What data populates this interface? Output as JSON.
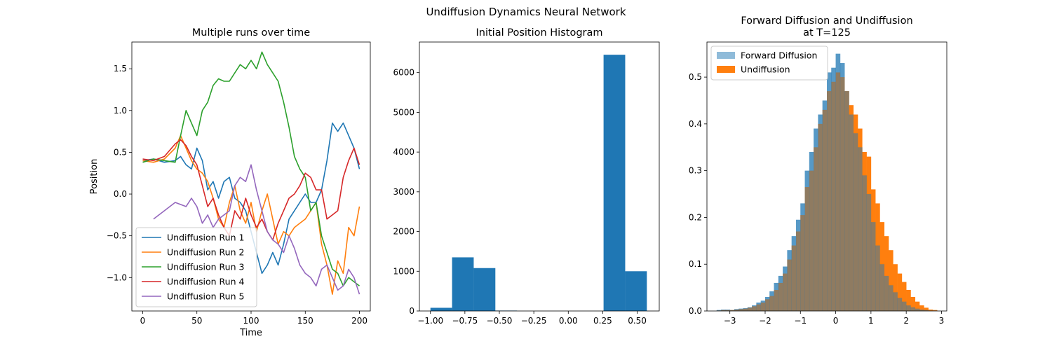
{
  "figure": {
    "suptitle": "Undiffusion Dynamics Neural Network"
  },
  "chart_data": [
    {
      "type": "line",
      "title": "Multiple runs over time",
      "xlabel": "Time",
      "ylabel": "Position",
      "xlim": [
        -10,
        210
      ],
      "ylim": [
        -1.4,
        1.82
      ],
      "xticks": [
        0,
        50,
        100,
        150,
        200
      ],
      "yticks": [
        -1.0,
        -0.5,
        0.0,
        0.5,
        1.0,
        1.5
      ],
      "xtick_labels": [
        "0",
        "50",
        "100",
        "150",
        "200"
      ],
      "ytick_labels": [
        "−1.0",
        "−0.5",
        "0.0",
        "0.5",
        "1.0",
        "1.5"
      ],
      "legend_position": "lower-left",
      "series": [
        {
          "name": "Undiffusion Run 1",
          "color": "#1f77b4",
          "x": [
            0,
            10,
            20,
            30,
            35,
            40,
            45,
            50,
            55,
            60,
            65,
            70,
            75,
            80,
            85,
            90,
            95,
            100,
            105,
            110,
            115,
            120,
            125,
            130,
            135,
            140,
            145,
            150,
            155,
            160,
            165,
            170,
            175,
            180,
            185,
            190,
            195,
            200
          ],
          "y": [
            0.4,
            0.42,
            0.38,
            0.4,
            0.45,
            0.35,
            0.3,
            0.55,
            0.4,
            0.05,
            0.15,
            -0.05,
            0.15,
            0.2,
            -0.05,
            -0.1,
            -0.2,
            -0.45,
            -0.7,
            -0.95,
            -0.85,
            -0.7,
            -0.85,
            -0.6,
            -0.3,
            -0.2,
            -0.1,
            0.0,
            -0.1,
            -0.1,
            0.05,
            0.4,
            0.85,
            0.75,
            0.85,
            0.7,
            0.55,
            0.3
          ]
        },
        {
          "name": "Undiffusion Run 2",
          "color": "#ff7f0e",
          "x": [
            0,
            10,
            20,
            30,
            35,
            40,
            45,
            50,
            55,
            60,
            65,
            70,
            75,
            80,
            85,
            90,
            95,
            100,
            105,
            110,
            115,
            120,
            125,
            130,
            135,
            140,
            145,
            150,
            155,
            160,
            165,
            170,
            175,
            180,
            185,
            190,
            195,
            200
          ],
          "y": [
            0.4,
            0.38,
            0.42,
            0.55,
            0.7,
            0.55,
            0.4,
            0.3,
            0.25,
            0.15,
            -0.05,
            -0.3,
            -0.4,
            -0.1,
            0.1,
            -0.2,
            -0.35,
            -0.1,
            -0.45,
            -0.2,
            0.0,
            -0.3,
            -0.6,
            -0.45,
            -0.5,
            -0.4,
            -0.35,
            -0.3,
            -0.2,
            -0.1,
            -0.6,
            -0.85,
            -1.2,
            -0.8,
            -0.95,
            -0.4,
            -0.5,
            -0.15
          ]
        },
        {
          "name": "Undiffusion Run 3",
          "color": "#2ca02c",
          "x": [
            0,
            10,
            20,
            30,
            35,
            40,
            45,
            50,
            55,
            60,
            65,
            70,
            75,
            80,
            85,
            90,
            95,
            100,
            105,
            110,
            115,
            120,
            125,
            130,
            135,
            140,
            145,
            150,
            155,
            160,
            165,
            170,
            175,
            180,
            185,
            190,
            195,
            200
          ],
          "y": [
            0.38,
            0.42,
            0.4,
            0.38,
            0.7,
            1.0,
            0.85,
            0.7,
            1.0,
            1.1,
            1.3,
            1.38,
            1.35,
            1.35,
            1.45,
            1.55,
            1.5,
            1.6,
            1.5,
            1.7,
            1.55,
            1.45,
            1.35,
            1.1,
            0.8,
            0.45,
            0.3,
            0.2,
            -0.2,
            -0.1,
            -0.5,
            -0.7,
            -0.9,
            -0.95,
            -1.1,
            -1.0,
            -1.05,
            -1.1
          ]
        },
        {
          "name": "Undiffusion Run 4",
          "color": "#d62728",
          "x": [
            0,
            10,
            20,
            30,
            35,
            40,
            45,
            50,
            55,
            60,
            65,
            70,
            75,
            80,
            85,
            90,
            95,
            100,
            105,
            110,
            115,
            120,
            125,
            130,
            135,
            140,
            145,
            150,
            155,
            160,
            165,
            170,
            175,
            180,
            185,
            190,
            195,
            200
          ],
          "y": [
            0.42,
            0.4,
            0.45,
            0.6,
            0.65,
            0.58,
            0.45,
            0.35,
            0.1,
            -0.15,
            -0.05,
            -0.25,
            -0.4,
            -0.5,
            -0.2,
            -0.3,
            -0.05,
            -0.25,
            -0.4,
            -0.3,
            -0.45,
            -0.55,
            -0.35,
            -0.2,
            -0.05,
            0.0,
            0.1,
            0.25,
            0.2,
            0.05,
            0.05,
            -0.3,
            -0.25,
            -0.2,
            0.2,
            0.4,
            0.55,
            0.35
          ]
        },
        {
          "name": "Undiffusion Run 5",
          "color": "#9467bd",
          "x": [
            10,
            20,
            30,
            40,
            45,
            50,
            55,
            60,
            65,
            70,
            75,
            80,
            85,
            90,
            95,
            100,
            105,
            110,
            115,
            120,
            125,
            130,
            135,
            140,
            145,
            150,
            155,
            160,
            165,
            170,
            175,
            180,
            185,
            190,
            195,
            200
          ],
          "y": [
            -0.3,
            -0.2,
            -0.1,
            -0.15,
            -0.05,
            -0.15,
            -0.35,
            -0.25,
            -0.4,
            -0.3,
            -0.25,
            -0.2,
            0.1,
            0.2,
            0.15,
            0.35,
            0.05,
            -0.2,
            -0.45,
            -0.55,
            -0.6,
            -0.7,
            -0.5,
            -0.65,
            -0.85,
            -0.95,
            -1.0,
            -1.1,
            -0.9,
            -0.85,
            -1.0,
            -1.15,
            -1.1,
            -0.9,
            -1.0,
            -1.2
          ]
        }
      ]
    },
    {
      "type": "bar",
      "title": "Initial Position Histogram",
      "xlim": [
        -1.08,
        0.66
      ],
      "ylim": [
        0,
        6770
      ],
      "xticks": [
        -1.0,
        -0.75,
        -0.5,
        -0.25,
        0.0,
        0.25,
        0.5
      ],
      "yticks": [
        0,
        1000,
        2000,
        3000,
        4000,
        5000,
        6000
      ],
      "xtick_labels": [
        "−1.00",
        "−0.75",
        "−0.50",
        "−0.25",
        "0.00",
        "0.25",
        "0.50"
      ],
      "ytick_labels": [
        "0",
        "1000",
        "2000",
        "3000",
        "4000",
        "5000",
        "6000"
      ],
      "color": "#1f77b4",
      "bin_edges": [
        -1.0,
        -0.843,
        -0.686,
        -0.529,
        -0.372,
        -0.215,
        -0.058,
        0.099,
        0.256,
        0.413,
        0.57
      ],
      "values": [
        80,
        1350,
        1080,
        10,
        0,
        0,
        0,
        0,
        6450,
        1000
      ]
    },
    {
      "type": "bar",
      "title": "Forward Diffusion and Undiffusion",
      "subtitle": "at T=125",
      "xlim": [
        -3.65,
        3.15
      ],
      "ylim": [
        0,
        0.575
      ],
      "xticks": [
        -3,
        -2,
        -1,
        0,
        1,
        2,
        3
      ],
      "yticks": [
        0.0,
        0.1,
        0.2,
        0.3,
        0.4,
        0.5
      ],
      "xtick_labels": [
        "−3",
        "−2",
        "−1",
        "0",
        "1",
        "2",
        "3"
      ],
      "ytick_labels": [
        "0.0",
        "0.1",
        "0.2",
        "0.3",
        "0.4",
        "0.5"
      ],
      "legend_position": "top-left",
      "bin_edges": [
        -3.375,
        -3.25,
        -3.125,
        -3.0,
        -2.875,
        -2.75,
        -2.625,
        -2.5,
        -2.375,
        -2.25,
        -2.125,
        -2.0,
        -1.875,
        -1.75,
        -1.625,
        -1.5,
        -1.375,
        -1.25,
        -1.125,
        -1.0,
        -0.875,
        -0.75,
        -0.625,
        -0.5,
        -0.375,
        -0.25,
        -0.125,
        0.0,
        0.125,
        0.25,
        0.375,
        0.5,
        0.625,
        0.75,
        0.875,
        1.0,
        1.125,
        1.25,
        1.375,
        1.5,
        1.625,
        1.75,
        1.875,
        2.0,
        2.125,
        2.25,
        2.375,
        2.5,
        2.625,
        2.75,
        2.875
      ],
      "series": [
        {
          "name": "Forward Diffusion",
          "color": "#1f77b4",
          "alpha": 0.5,
          "values": [
            0.002,
            0.003,
            0.003,
            0.002,
            0.004,
            0.005,
            0.006,
            0.008,
            0.012,
            0.018,
            0.022,
            0.03,
            0.042,
            0.06,
            0.075,
            0.095,
            0.13,
            0.16,
            0.195,
            0.23,
            0.3,
            0.34,
            0.39,
            0.42,
            0.45,
            0.51,
            0.52,
            0.55,
            0.53,
            0.47,
            0.42,
            0.38,
            0.35,
            0.29,
            0.25,
            0.19,
            0.14,
            0.1,
            0.075,
            0.055,
            0.04,
            0.028,
            0.02,
            0.012,
            0.008,
            0.005,
            0.003,
            0.002,
            0.001,
            0.001
          ]
        },
        {
          "name": "Undiffusion",
          "color": "#ff7f0e",
          "alpha": 1,
          "values": [
            0.001,
            0.002,
            0.002,
            0.002,
            0.003,
            0.004,
            0.005,
            0.007,
            0.01,
            0.014,
            0.018,
            0.025,
            0.032,
            0.045,
            0.06,
            0.08,
            0.11,
            0.14,
            0.17,
            0.205,
            0.265,
            0.3,
            0.35,
            0.4,
            0.43,
            0.47,
            0.49,
            0.51,
            0.5,
            0.47,
            0.44,
            0.42,
            0.39,
            0.34,
            0.33,
            0.26,
            0.23,
            0.19,
            0.16,
            0.13,
            0.1,
            0.08,
            0.062,
            0.045,
            0.03,
            0.02,
            0.012,
            0.007,
            0.003,
            0.002
          ]
        }
      ]
    }
  ]
}
